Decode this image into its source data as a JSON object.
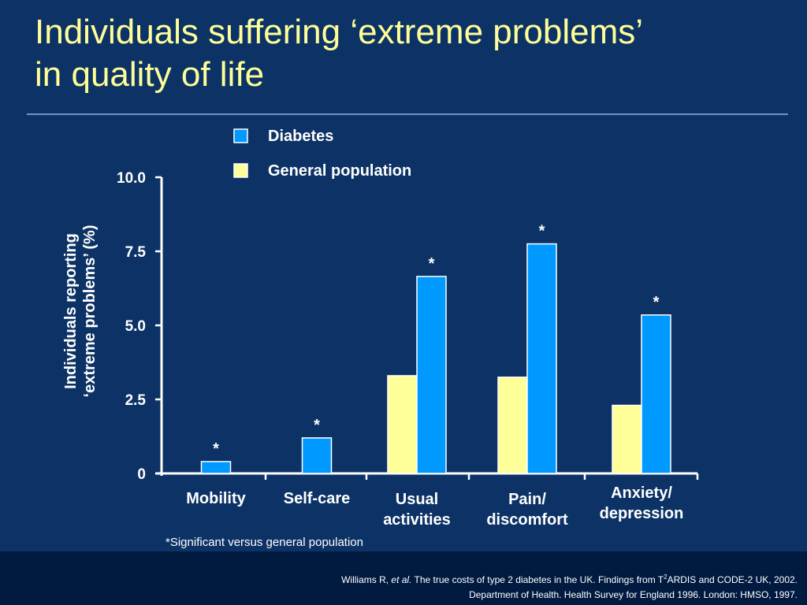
{
  "slide": {
    "title_line1": "Individuals suffering ‘extreme problems’",
    "title_line2": "in quality of life",
    "footnote": "*Significant versus general population",
    "reference_1_prefix": "Williams R, ",
    "reference_1_etal": "et al.",
    "reference_1_text_a": " The true costs of type 2 diabetes in the UK. Findings from T",
    "reference_1_sup": "2",
    "reference_1_text_b": "ARDIS and CODE-2 UK, 2002.",
    "reference_2": "Department of Health. Health Survey for England 1996. London: HMSO, 1997."
  },
  "chart_data": {
    "type": "bar",
    "title": "",
    "xlabel": "",
    "ylabel_line1": "Individuals reporting",
    "ylabel_line2": "‘extreme problems’ (%)",
    "ylim": [
      0,
      10
    ],
    "yticks": [
      "0",
      "2.5",
      "5.0",
      "7.5",
      "10.0"
    ],
    "ytick_values": [
      0,
      2.5,
      5.0,
      7.5,
      10.0
    ],
    "categories": [
      [
        "Mobility"
      ],
      [
        "Self-care"
      ],
      [
        "Usual",
        "activities"
      ],
      [
        "Pain/",
        "discomfort"
      ],
      [
        "Anxiety/",
        "depression"
      ]
    ],
    "series": [
      {
        "name": "General population",
        "color": "#ffff99",
        "values": [
          0,
          0,
          3.3,
          3.25,
          2.3
        ]
      },
      {
        "name": "Diabetes",
        "color": "#0099ff",
        "values": [
          0.4,
          1.2,
          6.65,
          7.75,
          5.35
        ]
      }
    ],
    "significance_marker": "*",
    "significant": [
      true,
      true,
      true,
      true,
      true
    ],
    "legend": [
      {
        "name": "Diabetes",
        "color": "#0099ff"
      },
      {
        "name": "General population",
        "color": "#ffff99"
      }
    ],
    "legend_position": "top",
    "grid": false
  }
}
